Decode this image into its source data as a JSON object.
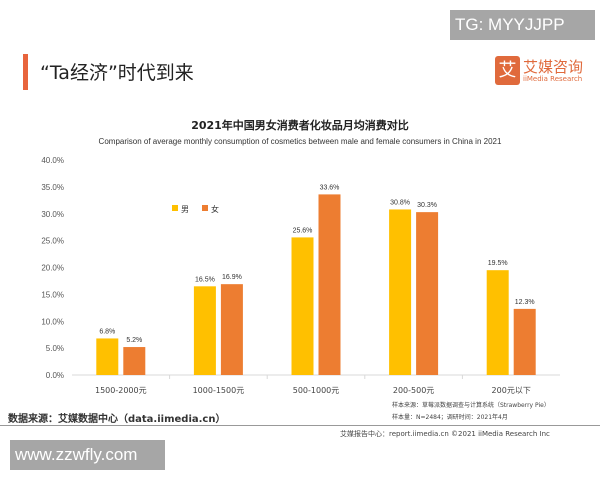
{
  "watermark_top": "TG: MYYJJPP",
  "watermark_bottom": "www.zzwfly.com",
  "header": {
    "title": "“Ta经济”时代到来",
    "logo_cn": "艾媒咨询",
    "logo_en": "iiMedia Research",
    "logo_mark": "艾"
  },
  "chart_data": {
    "type": "bar",
    "title": "2021年中国男女消费者化妆品月均消费对比",
    "subtitle": "Comparison of average monthly consumption of cosmetics between male and female consumers in China in 2021",
    "categories": [
      "1500-2000元",
      "1000-1500元",
      "500-1000元",
      "200-500元",
      "200元以下"
    ],
    "series": [
      {
        "name": "男",
        "values": [
          6.8,
          16.5,
          25.6,
          30.8,
          19.5
        ],
        "labels": [
          "6.8%",
          "16.5%",
          "25.6%",
          "30.8%",
          "19.5%"
        ],
        "color": "#FFC000"
      },
      {
        "name": "女",
        "values": [
          5.2,
          16.9,
          33.6,
          30.3,
          12.3
        ],
        "labels": [
          "5.2%",
          "16.9%",
          "33.6%",
          "30.3%",
          "12.3%"
        ],
        "color": "#ED7D31"
      }
    ],
    "ylim": [
      0,
      40
    ],
    "yticks": [
      "0.0%",
      "5.0%",
      "10.0%",
      "15.0%",
      "20.0%",
      "25.0%",
      "30.0%",
      "35.0%",
      "40.0%"
    ],
    "legend": "top-left",
    "grid": false
  },
  "footer": {
    "source": "数据来源：艾媒数据中心（data.iimedia.cn）",
    "sample_source": "样本来源：草莓派数据调查与计算系统（Strawberry Pie）",
    "sample_size": "样本量：N=2484；调研时间：2021年4月",
    "copyright": "艾媒报告中心：report.iimedia.cn  ©2021  iiMedia Research  Inc"
  }
}
